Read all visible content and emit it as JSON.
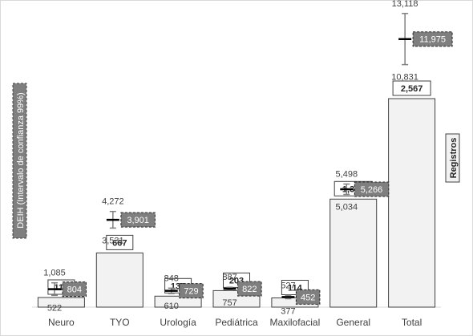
{
  "chart_data": {
    "type": "bar",
    "categories": [
      "Neuro",
      "TYO",
      "Urología",
      "Pediátrica",
      "Maxilofacial",
      "General",
      "Total"
    ],
    "series": [
      {
        "name": "Registros",
        "values": [
          118,
          667,
          135,
          203,
          114,
          1330,
          2567
        ],
        "labels": [
          "118",
          "667",
          "135",
          "203",
          "114",
          "1,330",
          "2,567"
        ]
      },
      {
        "name": "DEIH (Intervalo de confianza 99%)",
        "values": [
          804,
          3901,
          729,
          822,
          452,
          5266,
          11975
        ],
        "labels": [
          "804",
          "3,901",
          "729",
          "822",
          "452",
          "5,266",
          "11,975"
        ],
        "ci_upper": [
          1085,
          4272,
          848,
          887,
          527,
          5498,
          13118
        ],
        "ci_upper_labels": [
          "1,085",
          "4,272",
          "848",
          "887",
          "527",
          "5,498",
          "13,118"
        ],
        "ci_lower": [
          522,
          3531,
          610,
          757,
          377,
          5034,
          10831
        ],
        "ci_lower_labels": [
          "522",
          "3,531",
          "610",
          "757",
          "377",
          "5,034",
          "10,831"
        ]
      }
    ],
    "primary_axis_title": "Registros",
    "secondary_axis_title": "DEIH (Intervalo de confianza 99%)",
    "grid": false,
    "legend": "none"
  }
}
